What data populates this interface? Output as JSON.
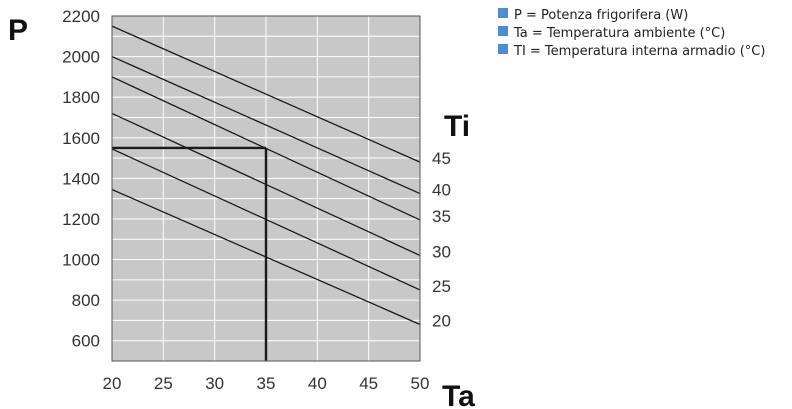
{
  "chart_data": {
    "type": "line",
    "axis_symbol_y": "P",
    "axis_symbol_x": "Ta",
    "axis_symbol_series": "Ti",
    "x_ticks": [
      "20",
      "25",
      "30",
      "35",
      "40",
      "45",
      "50"
    ],
    "y_ticks": [
      "600",
      "800",
      "1000",
      "1200",
      "1400",
      "1600",
      "1800",
      "2000",
      "2200"
    ],
    "xlim": [
      20,
      50
    ],
    "ylim": [
      500,
      2200
    ],
    "grid": true,
    "plot_background": "#c8c8c8",
    "line_color": "#1a1a1a",
    "series": [
      {
        "name": "20",
        "x": [
          20,
          50
        ],
        "y": [
          1345,
          680
        ]
      },
      {
        "name": "25",
        "x": [
          20,
          50
        ],
        "y": [
          1545,
          850
        ]
      },
      {
        "name": "30",
        "x": [
          20,
          50
        ],
        "y": [
          1720,
          1020
        ]
      },
      {
        "name": "35",
        "x": [
          20,
          50
        ],
        "y": [
          1900,
          1195
        ]
      },
      {
        "name": "40",
        "x": [
          20,
          50
        ],
        "y": [
          2000,
          1325
        ]
      },
      {
        "name": "45",
        "x": [
          20,
          50
        ],
        "y": [
          2150,
          1480
        ]
      }
    ],
    "reference": {
      "x": 35,
      "y": 1550
    },
    "legend": {
      "position": "top-right",
      "swatch_color": "#4a8fd4",
      "items": [
        "P = Potenza frigorifera (W)",
        "Ta = Temperatura ambiente (°C)",
        "TI = Temperatura interna armadio (°C)"
      ]
    }
  }
}
